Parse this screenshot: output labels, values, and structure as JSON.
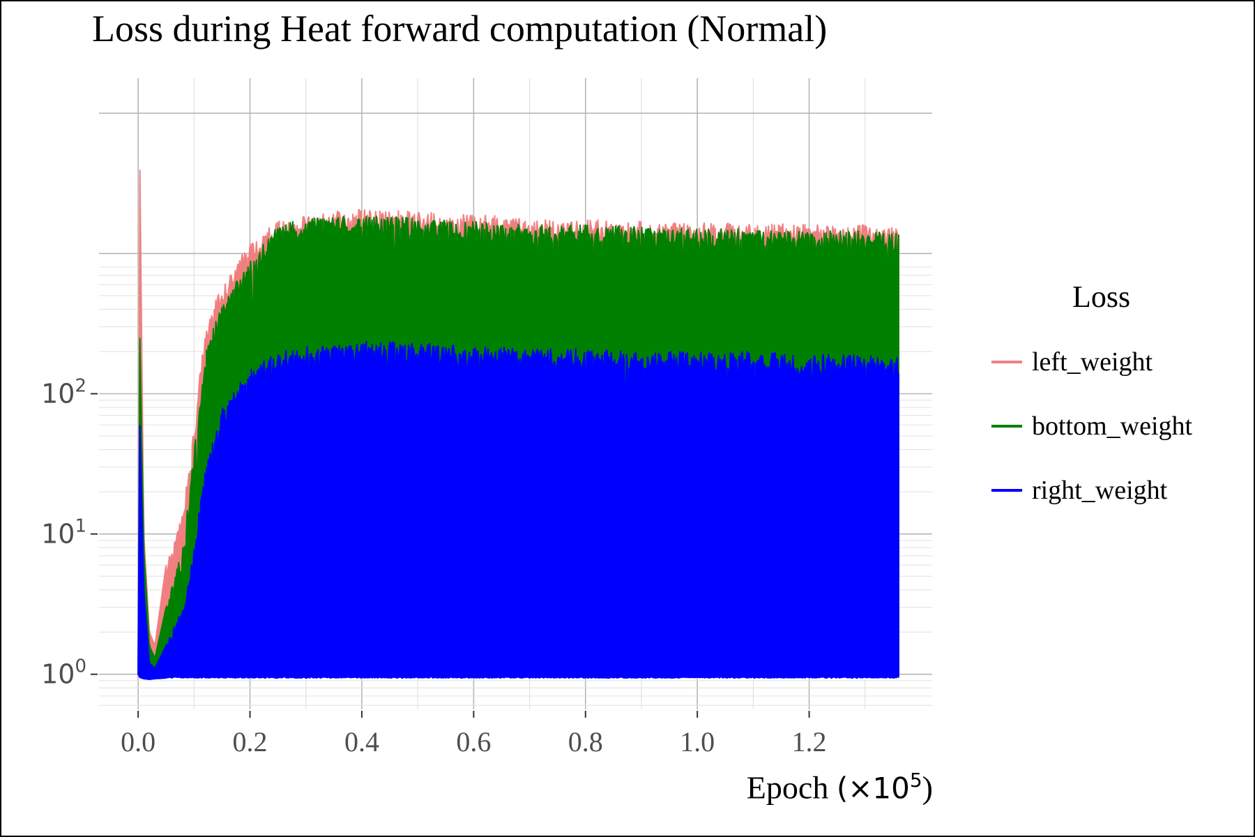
{
  "chart_data": {
    "type": "line",
    "title": "Loss during Heat forward computation (Normal)",
    "xlabel": "Epoch",
    "xlabel_multiplier": "(×10",
    "xlabel_multiplier_exp": "5",
    "xlabel_close": ")",
    "ylabel": "",
    "yscale": "log",
    "xlim": [
      -0.07,
      1.42
    ],
    "ylim_log10": [
      -0.25,
      4.25
    ],
    "x_ticks": [
      0.0,
      0.2,
      0.4,
      0.6,
      0.8,
      1.0,
      1.2
    ],
    "x_tick_labels": [
      "0.0",
      "0.2",
      "0.4",
      "0.6",
      "0.8",
      "1.0",
      "1.2"
    ],
    "y_ticks": [
      1,
      10,
      100
    ],
    "y_tick_labels": [
      {
        "base": "10",
        "exp": "0"
      },
      {
        "base": "10",
        "exp": "1"
      },
      {
        "base": "10",
        "exp": "2"
      }
    ],
    "grid": true,
    "legend": {
      "title": "Loss",
      "position": "right"
    },
    "series": [
      {
        "name": "left_weight",
        "color": "#f08080",
        "x": [
          0.0,
          0.003,
          0.01,
          0.02,
          0.03,
          0.05,
          0.08,
          0.1,
          0.12,
          0.15,
          0.2,
          0.25,
          0.3,
          0.4,
          0.5,
          0.6,
          0.7,
          0.8,
          0.9,
          1.0,
          1.1,
          1.2,
          1.3,
          1.36
        ],
        "high": [
          1.0,
          4000,
          10,
          2.0,
          1.6,
          6,
          14,
          60,
          300,
          600,
          1200,
          1700,
          1900,
          2100,
          2000,
          1900,
          1800,
          1750,
          1700,
          1650,
          1650,
          1600,
          1600,
          1550
        ],
        "low": [
          1.0,
          1.0,
          1.0,
          1.0,
          1.0,
          1.0,
          1.0,
          1.0,
          1.0,
          1.0,
          1.0,
          1.0,
          1.0,
          1.0,
          1.0,
          1.0,
          1.0,
          1.0,
          1.0,
          1.0,
          1.0,
          1.0,
          1.0,
          1.0
        ]
      },
      {
        "name": "bottom_weight",
        "color": "#008000",
        "x": [
          0.0,
          0.003,
          0.01,
          0.02,
          0.03,
          0.05,
          0.08,
          0.1,
          0.12,
          0.15,
          0.2,
          0.25,
          0.3,
          0.4,
          0.5,
          0.6,
          0.7,
          0.8,
          0.9,
          1.0,
          1.1,
          1.2,
          1.3,
          1.36
        ],
        "high": [
          1.0,
          250,
          8,
          1.6,
          1.3,
          3,
          8,
          40,
          200,
          450,
          900,
          1600,
          1800,
          1900,
          1800,
          1700,
          1600,
          1600,
          1550,
          1500,
          1500,
          1450,
          1450,
          1400
        ],
        "low": [
          1.0,
          1.0,
          1.0,
          1.0,
          1.0,
          1.0,
          1.0,
          1.0,
          1.0,
          1.0,
          1.0,
          1.0,
          1.0,
          1.0,
          1.0,
          1.0,
          1.0,
          1.0,
          1.0,
          1.0,
          1.0,
          1.0,
          1.0,
          1.0
        ]
      },
      {
        "name": "right_weight",
        "color": "#0000ff",
        "x": [
          0.0,
          0.003,
          0.01,
          0.02,
          0.03,
          0.05,
          0.08,
          0.1,
          0.12,
          0.15,
          0.2,
          0.25,
          0.3,
          0.4,
          0.5,
          0.6,
          0.7,
          0.8,
          0.9,
          1.0,
          1.1,
          1.2,
          1.3,
          1.36
        ],
        "high": [
          1.0,
          60,
          4,
          1.2,
          1.1,
          1.6,
          3,
          8,
          30,
          80,
          150,
          200,
          220,
          240,
          230,
          220,
          210,
          210,
          200,
          200,
          200,
          190,
          190,
          180
        ],
        "low": [
          1.0,
          0.95,
          0.93,
          0.92,
          0.93,
          0.94,
          0.94,
          0.94,
          0.94,
          0.94,
          0.94,
          0.94,
          0.94,
          0.94,
          0.94,
          0.94,
          0.94,
          0.94,
          0.94,
          0.94,
          0.94,
          0.94,
          0.94,
          0.94
        ]
      }
    ]
  }
}
